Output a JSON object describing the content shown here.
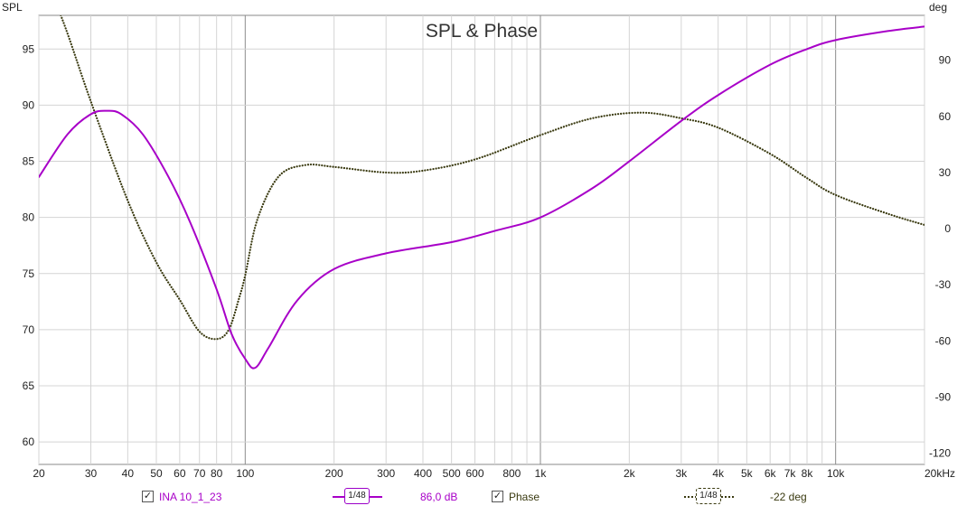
{
  "chart_data": {
    "type": "line",
    "title": "SPL & Phase",
    "ylabel_left": "SPL",
    "ylabel_right": "deg",
    "xunit_label": "20kHz",
    "x_scale": "log",
    "xlim": [
      20,
      20000
    ],
    "ylim_left": [
      58,
      98
    ],
    "ylim_right": [
      -126,
      114
    ],
    "x_ticks": [
      20,
      30,
      40,
      50,
      60,
      70,
      80,
      100,
      200,
      300,
      400,
      500,
      600,
      800,
      1000,
      2000,
      3000,
      4000,
      5000,
      6000,
      7000,
      8000,
      10000,
      20000
    ],
    "x_tick_labels": [
      "20",
      "30",
      "40",
      "50",
      "60",
      "70",
      "80",
      "100",
      "200",
      "300",
      "400",
      "500",
      "600",
      "800",
      "1k",
      "2k",
      "3k",
      "4k",
      "5k",
      "6k",
      "7k",
      "8k",
      "10k",
      "20kHz"
    ],
    "y_ticks_left": [
      60,
      65,
      70,
      75,
      80,
      85,
      90,
      95
    ],
    "y_ticks_right": [
      -120,
      -90,
      -60,
      -30,
      0,
      30,
      60,
      90
    ],
    "grid": true,
    "series": [
      {
        "name": "INA 10_1_23",
        "axis": "left",
        "color": "#a800c8",
        "style": "solid",
        "x": [
          20,
          25,
          30,
          34,
          38,
          45,
          55,
          65,
          80,
          90,
          100,
          108,
          120,
          150,
          200,
          300,
          500,
          700,
          1000,
          1500,
          2000,
          3000,
          4000,
          6000,
          8000,
          10000,
          15000,
          20000
        ],
        "y": [
          83.6,
          87.4,
          89.2,
          89.5,
          89.2,
          87.4,
          83.6,
          79.6,
          73.6,
          69.6,
          67.4,
          66.6,
          68.4,
          72.6,
          75.4,
          76.8,
          77.8,
          78.8,
          80.0,
          82.6,
          85.0,
          88.6,
          90.9,
          93.6,
          95.0,
          95.8,
          96.6,
          97.0
        ]
      },
      {
        "name": "Phase",
        "axis": "right",
        "color": "#3a3a10",
        "style": "dotted",
        "x": [
          20,
          24,
          30,
          40,
          50,
          60,
          70,
          80,
          88,
          95,
          100,
          110,
          130,
          160,
          200,
          300,
          400,
          600,
          1000,
          1500,
          2200,
          3000,
          4000,
          6000,
          8000,
          10000,
          15000,
          20000
        ],
        "y": [
          140,
          112,
          68,
          15,
          -18,
          -38,
          -55,
          -59,
          -54,
          -38,
          -25,
          5,
          28,
          34,
          33,
          30,
          31,
          37,
          50,
          59,
          62,
          59,
          54,
          40,
          27,
          18,
          8,
          2
        ]
      }
    ],
    "legend": {
      "series1_label": "INA 10_1_23",
      "smoothing": "1/48",
      "series1_value": "86,0 dB",
      "series2_label": "Phase",
      "series2_value": "-22 deg"
    }
  }
}
